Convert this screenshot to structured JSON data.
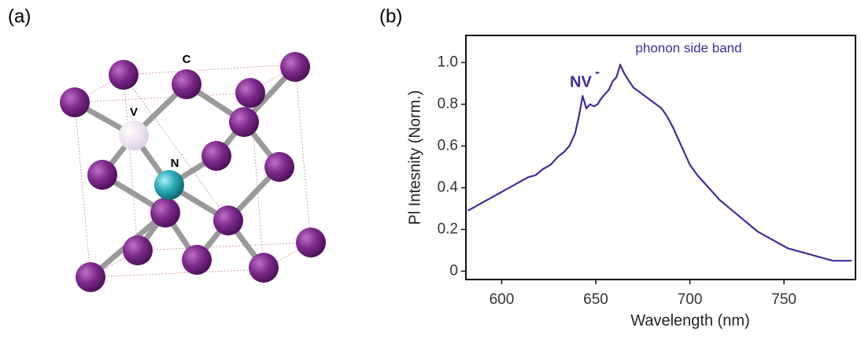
{
  "panels": {
    "a": "(a)",
    "b": "(b)"
  },
  "structure": {
    "atoms": {
      "c": "C",
      "v": "V",
      "n": "N"
    }
  },
  "chart_data": {
    "type": "line",
    "xlabel": "Wavelength (nm)",
    "ylabel": "Pl Intesnity (Norm.)",
    "annotations": {
      "psb": "phonon side band",
      "nv": "NV",
      "nv_sup": "-"
    },
    "color": "#3f2d9f",
    "xlim": [
      581,
      788
    ],
    "ylim": [
      -0.04,
      1.13
    ],
    "xticks": [
      600,
      650,
      700,
      750
    ],
    "yticks": [
      0,
      0.2,
      0.4,
      0.6,
      0.8,
      {
        "value": 1,
        "label": "1.0"
      }
    ],
    "x": [
      582,
      586,
      590,
      594,
      598,
      602,
      606,
      610,
      614,
      618,
      622,
      626,
      630,
      633,
      636,
      639,
      641,
      643,
      645,
      647,
      649,
      651,
      653,
      655,
      657,
      659,
      661,
      663,
      665,
      667,
      670,
      673,
      676,
      679,
      682,
      685,
      688,
      691,
      694,
      697,
      700,
      704,
      708,
      712,
      716,
      720,
      724,
      728,
      732,
      736,
      740,
      744,
      748,
      752,
      756,
      760,
      764,
      768,
      772,
      776,
      780,
      784,
      786
    ],
    "values": [
      0.29,
      0.31,
      0.33,
      0.35,
      0.37,
      0.39,
      0.41,
      0.43,
      0.45,
      0.46,
      0.49,
      0.51,
      0.55,
      0.57,
      0.6,
      0.66,
      0.74,
      0.84,
      0.78,
      0.8,
      0.79,
      0.8,
      0.83,
      0.85,
      0.87,
      0.91,
      0.93,
      0.99,
      0.95,
      0.92,
      0.88,
      0.86,
      0.84,
      0.82,
      0.8,
      0.78,
      0.74,
      0.69,
      0.63,
      0.57,
      0.51,
      0.46,
      0.42,
      0.38,
      0.34,
      0.31,
      0.28,
      0.25,
      0.22,
      0.19,
      0.17,
      0.15,
      0.13,
      0.11,
      0.1,
      0.09,
      0.08,
      0.07,
      0.06,
      0.05,
      0.05,
      0.05,
      0.05
    ]
  }
}
